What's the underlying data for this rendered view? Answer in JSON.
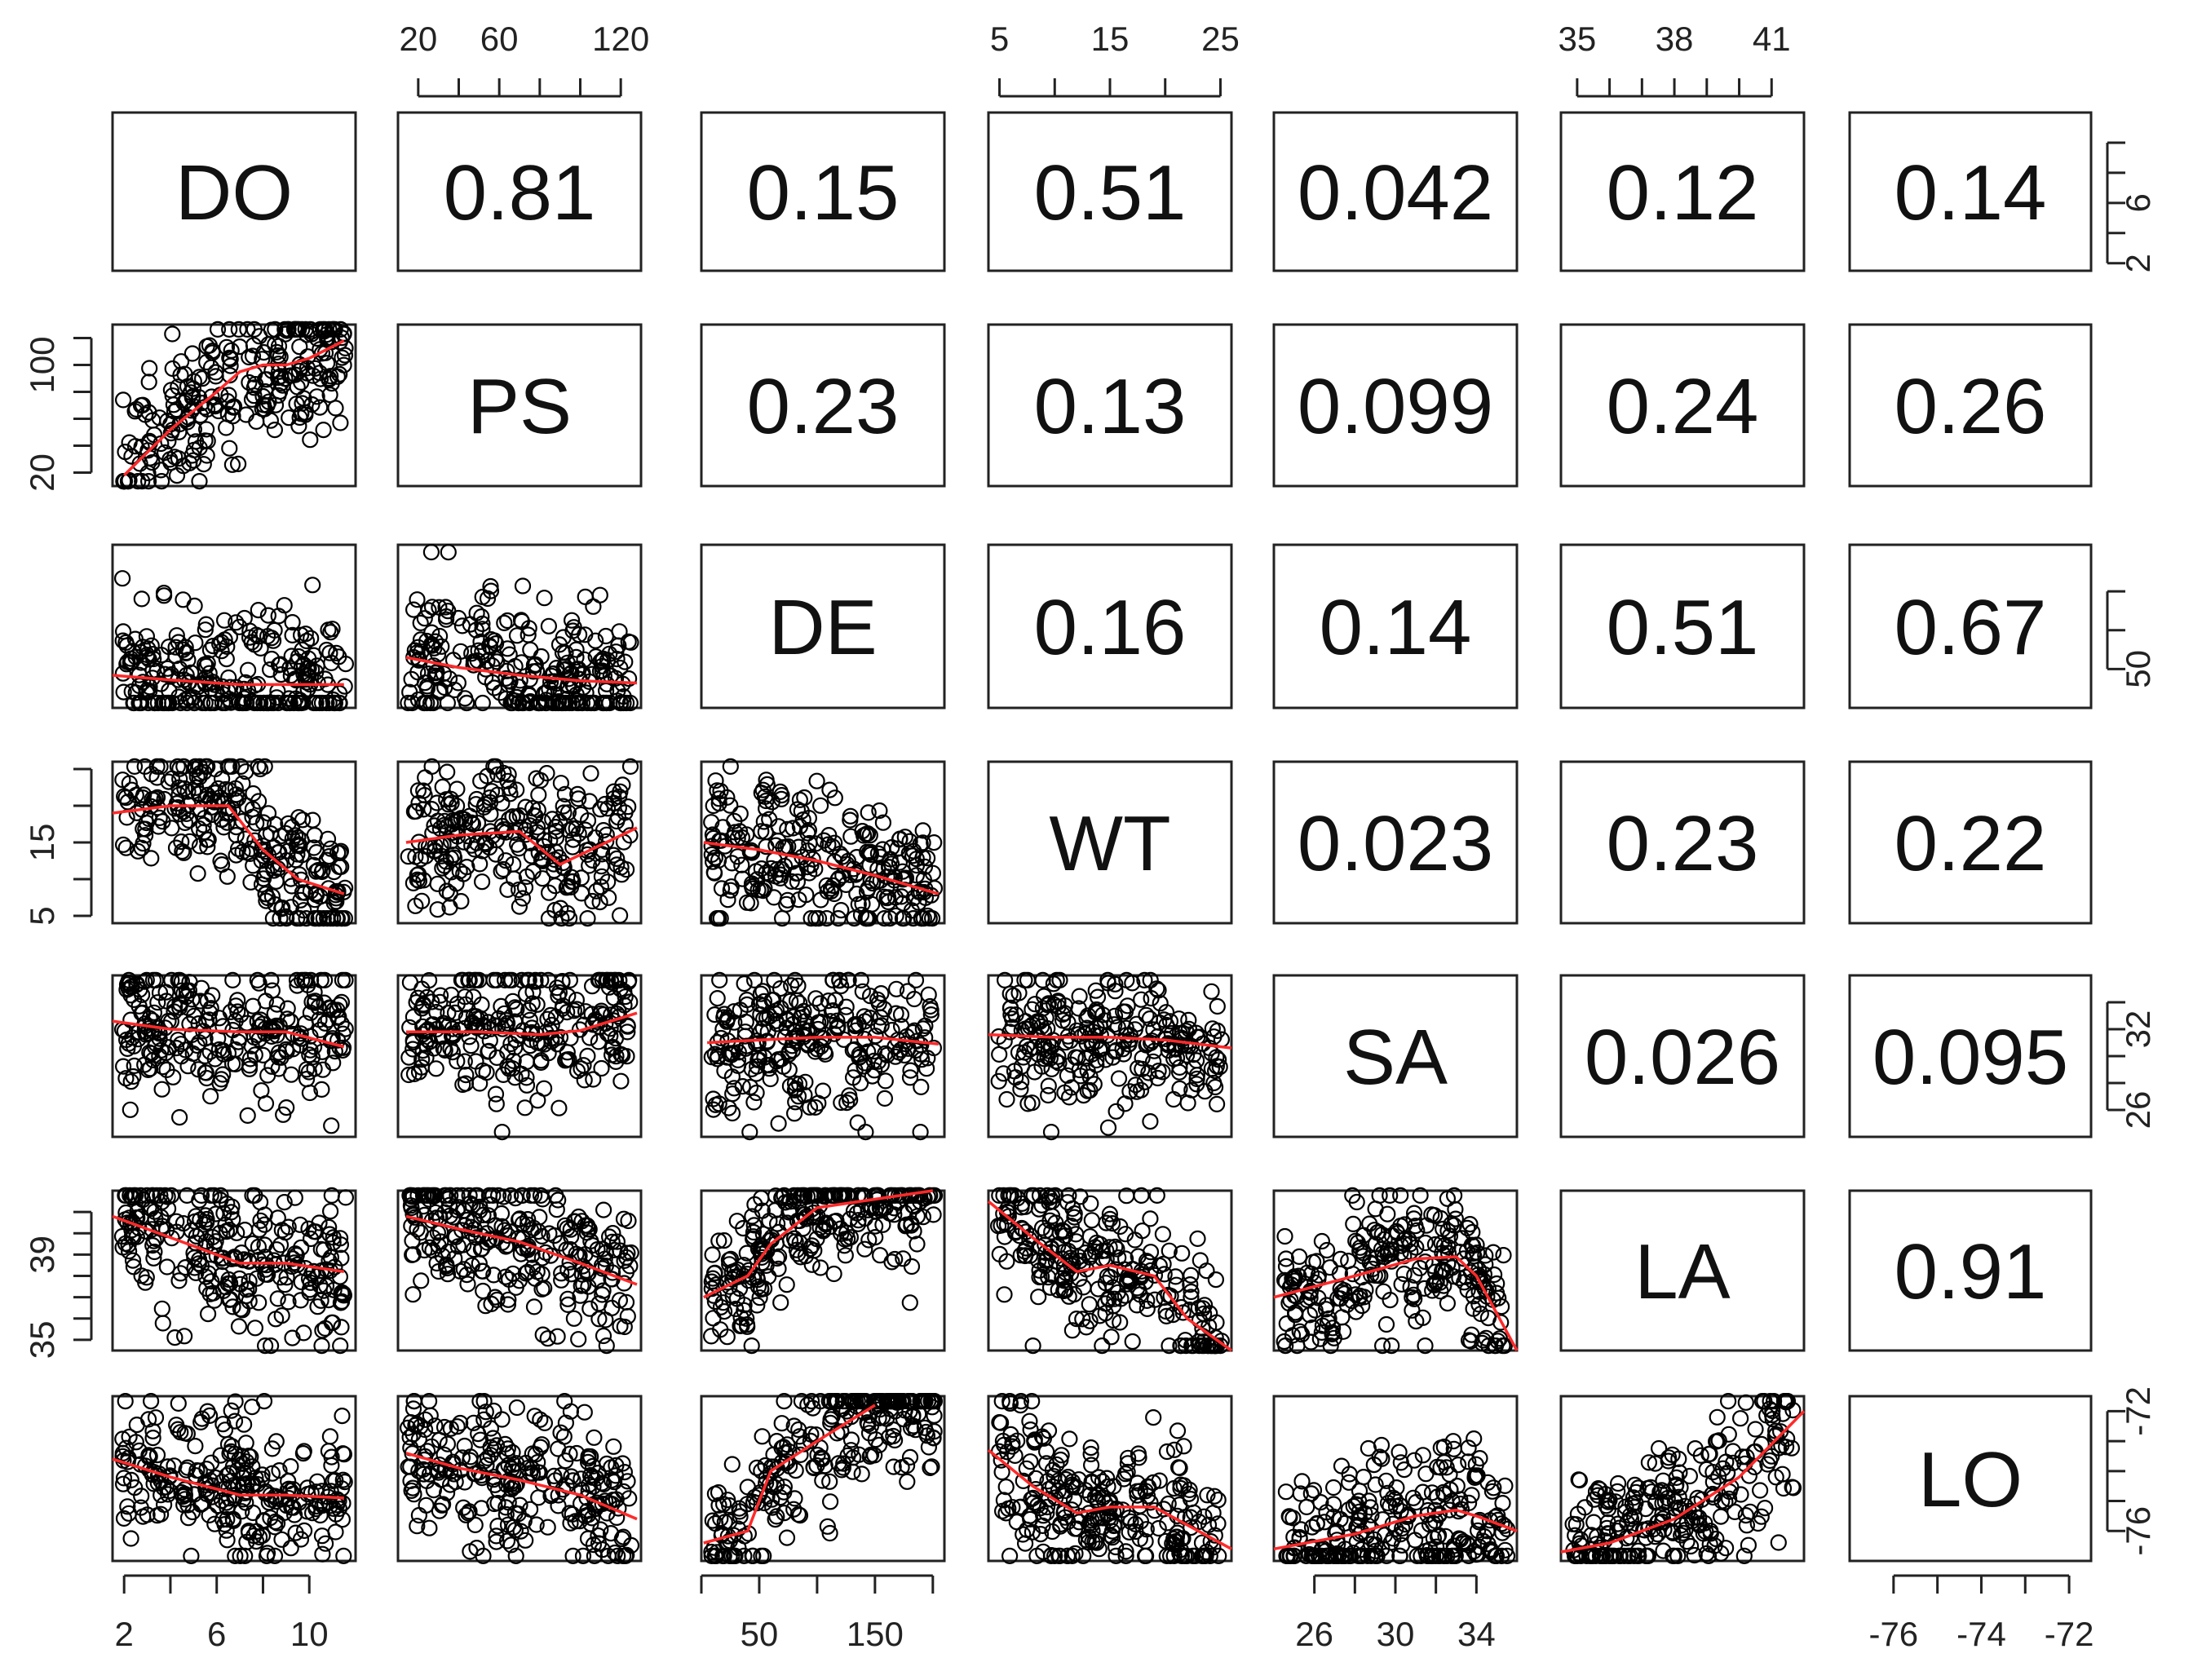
{
  "chart_data": {
    "type": "scatter-matrix",
    "variables": [
      "DO",
      "PS",
      "DE",
      "WT",
      "SA",
      "LA",
      "LO"
    ],
    "correlations": [
      [
        "",
        "0.81",
        "0.15",
        "0.51",
        "0.042",
        "0.12",
        "0.14"
      ],
      [
        "",
        "",
        "0.23",
        "0.13",
        "0.099",
        "0.24",
        "0.26"
      ],
      [
        "",
        "",
        "",
        "0.16",
        "0.14",
        "0.51",
        "0.67"
      ],
      [
        "",
        "",
        "",
        "",
        "0.023",
        "0.23",
        "0.22"
      ],
      [
        "",
        "",
        "",
        "",
        "",
        "0.026",
        "0.095"
      ],
      [
        "",
        "",
        "",
        "",
        "",
        "",
        "0.91"
      ],
      [
        "",
        "",
        "",
        "",
        "",
        "",
        ""
      ]
    ],
    "ranges": {
      "DO": [
        1.5,
        12.0
      ],
      "PS": [
        10,
        130
      ],
      "DE": [
        0,
        210
      ],
      "WT": [
        4,
        26
      ],
      "SA": [
        24,
        36
      ],
      "LA": [
        34.5,
        42
      ],
      "LO": [
        -77,
        -71.5
      ]
    },
    "axes": {
      "top": [
        {
          "var": "PS",
          "ticks": [
            20,
            60,
            120
          ],
          "minor": [
            20,
            40,
            60,
            80,
            100,
            120
          ]
        },
        {
          "var": "WT",
          "ticks": [
            5,
            15,
            25
          ],
          "minor": [
            5,
            10,
            15,
            20,
            25
          ]
        },
        {
          "var": "LA",
          "ticks": [
            35,
            38,
            41
          ],
          "minor": [
            35,
            36,
            37,
            38,
            39,
            40,
            41
          ]
        }
      ],
      "bottom": [
        {
          "var": "DO",
          "ticks": [
            2,
            6,
            10
          ],
          "minor": [
            2,
            4,
            6,
            8,
            10
          ]
        },
        {
          "var": "DE",
          "ticks": [
            50,
            150
          ],
          "minor": [
            0,
            50,
            100,
            150,
            200
          ]
        },
        {
          "var": "SA",
          "ticks": [
            26,
            30,
            34
          ],
          "minor": [
            26,
            28,
            30,
            32,
            34
          ]
        },
        {
          "var": "LO",
          "ticks": [
            -76,
            -74,
            -72
          ],
          "minor": [
            -76,
            -75,
            -74,
            -73,
            -72
          ]
        }
      ],
      "left": [
        {
          "var": "PS",
          "ticks": [
            20,
            100
          ],
          "minor": [
            20,
            40,
            60,
            80,
            100,
            120
          ]
        },
        {
          "var": "WT",
          "ticks": [
            5,
            15
          ],
          "minor": [
            5,
            10,
            15,
            20,
            25
          ]
        },
        {
          "var": "LA",
          "ticks": [
            35,
            39
          ],
          "minor": [
            35,
            36,
            37,
            38,
            39,
            40,
            41
          ]
        }
      ],
      "right": [
        {
          "var": "DO",
          "ticks": [
            2,
            6
          ],
          "minor": [
            2,
            4,
            6,
            8,
            10
          ]
        },
        {
          "var": "DE",
          "ticks": [
            50
          ],
          "minor": [
            50,
            100,
            150
          ]
        },
        {
          "var": "SA",
          "ticks": [
            26,
            32
          ],
          "minor": [
            26,
            28,
            30,
            32,
            34
          ]
        },
        {
          "var": "LO",
          "ticks": [
            -76,
            -72
          ],
          "minor": [
            -76,
            -75,
            -74,
            -73,
            -72
          ]
        }
      ]
    },
    "smoothers": {
      "PS|DO": [
        [
          2,
          18
        ],
        [
          4,
          52
        ],
        [
          6,
          80
        ],
        [
          7,
          95
        ],
        [
          8,
          100
        ],
        [
          9,
          100
        ],
        [
          10,
          105
        ],
        [
          11.5,
          118
        ]
      ],
      "DE|DO": [
        [
          1.5,
          42
        ],
        [
          4,
          36
        ],
        [
          7,
          30
        ],
        [
          9,
          30
        ],
        [
          11.5,
          30
        ]
      ],
      "DE|PS": [
        [
          14,
          65
        ],
        [
          40,
          52
        ],
        [
          70,
          42
        ],
        [
          100,
          35
        ],
        [
          128,
          32
        ]
      ],
      "WT|DO": [
        [
          1.5,
          19
        ],
        [
          4,
          20
        ],
        [
          6.5,
          20
        ],
        [
          8,
          14
        ],
        [
          9.5,
          10
        ],
        [
          11.5,
          8
        ]
      ],
      "WT|PS": [
        [
          14,
          15
        ],
        [
          40,
          16
        ],
        [
          70,
          16.5
        ],
        [
          90,
          12
        ],
        [
          128,
          17
        ]
      ],
      "WT|DE": [
        [
          2,
          15
        ],
        [
          50,
          14
        ],
        [
          100,
          12.5
        ],
        [
          150,
          10.5
        ],
        [
          205,
          8
        ]
      ],
      "SA|DO": [
        [
          1.5,
          32.6
        ],
        [
          4,
          32
        ],
        [
          7,
          31.8
        ],
        [
          9,
          31.8
        ],
        [
          11.5,
          30.7
        ]
      ],
      "SA|PS": [
        [
          14,
          31.8
        ],
        [
          50,
          31.8
        ],
        [
          80,
          31.6
        ],
        [
          100,
          31.9
        ],
        [
          128,
          33.2
        ]
      ],
      "SA|DE": [
        [
          5,
          31
        ],
        [
          50,
          31.2
        ],
        [
          100,
          31.4
        ],
        [
          150,
          31.4
        ],
        [
          205,
          30.9
        ]
      ],
      "SA|WT": [
        [
          4,
          31.6
        ],
        [
          10,
          31.4
        ],
        [
          15,
          31.4
        ],
        [
          20,
          31.2
        ],
        [
          26,
          30.6
        ]
      ],
      "LA|DO": [
        [
          1.5,
          40.8
        ],
        [
          4,
          39.8
        ],
        [
          7,
          38.6
        ],
        [
          9,
          38.6
        ],
        [
          11.5,
          38.2
        ]
      ],
      "LA|PS": [
        [
          14,
          40.8
        ],
        [
          40,
          40.2
        ],
        [
          70,
          39.6
        ],
        [
          100,
          38.6
        ],
        [
          128,
          37.6
        ]
      ],
      "LA|DE": [
        [
          2,
          37
        ],
        [
          40,
          38
        ],
        [
          60,
          39.5
        ],
        [
          100,
          41.2
        ],
        [
          200,
          42
        ]
      ],
      "LA|WT": [
        [
          4,
          41.5
        ],
        [
          8,
          39.8
        ],
        [
          12,
          38.2
        ],
        [
          15,
          38.5
        ],
        [
          19,
          38
        ],
        [
          22,
          36
        ],
        [
          26,
          34.5
        ]
      ],
      "LA|SA": [
        [
          24,
          37
        ],
        [
          28,
          38
        ],
        [
          31,
          38.8
        ],
        [
          33,
          38.9
        ],
        [
          34,
          38
        ],
        [
          36,
          34.5
        ]
      ],
      "LO|DO": [
        [
          1.5,
          -73.6
        ],
        [
          4,
          -74.2
        ],
        [
          7,
          -74.8
        ],
        [
          9,
          -74.8
        ],
        [
          11.5,
          -74.9
        ]
      ],
      "LO|PS": [
        [
          14,
          -73.4
        ],
        [
          40,
          -73.9
        ],
        [
          70,
          -74.3
        ],
        [
          100,
          -74.8
        ],
        [
          128,
          -75.6
        ]
      ],
      "LO|DE": [
        [
          2,
          -76.4
        ],
        [
          40,
          -76
        ],
        [
          60,
          -74
        ],
        [
          100,
          -73
        ],
        [
          150,
          -71.8
        ]
      ],
      "LO|WT": [
        [
          4,
          -73.3
        ],
        [
          8,
          -74.5
        ],
        [
          12,
          -75.4
        ],
        [
          15,
          -75.2
        ],
        [
          19,
          -75.2
        ],
        [
          22,
          -75.8
        ],
        [
          26,
          -76.6
        ]
      ],
      "LO|SA": [
        [
          24,
          -76.6
        ],
        [
          28,
          -76.1
        ],
        [
          31,
          -75.5
        ],
        [
          33,
          -75.3
        ],
        [
          34,
          -75.5
        ],
        [
          36,
          -76
        ]
      ],
      "LO|LA": [
        [
          34.5,
          -76.7
        ],
        [
          36,
          -76.4
        ],
        [
          38,
          -75.6
        ],
        [
          40,
          -74.2
        ],
        [
          42,
          -72
        ]
      ]
    }
  }
}
